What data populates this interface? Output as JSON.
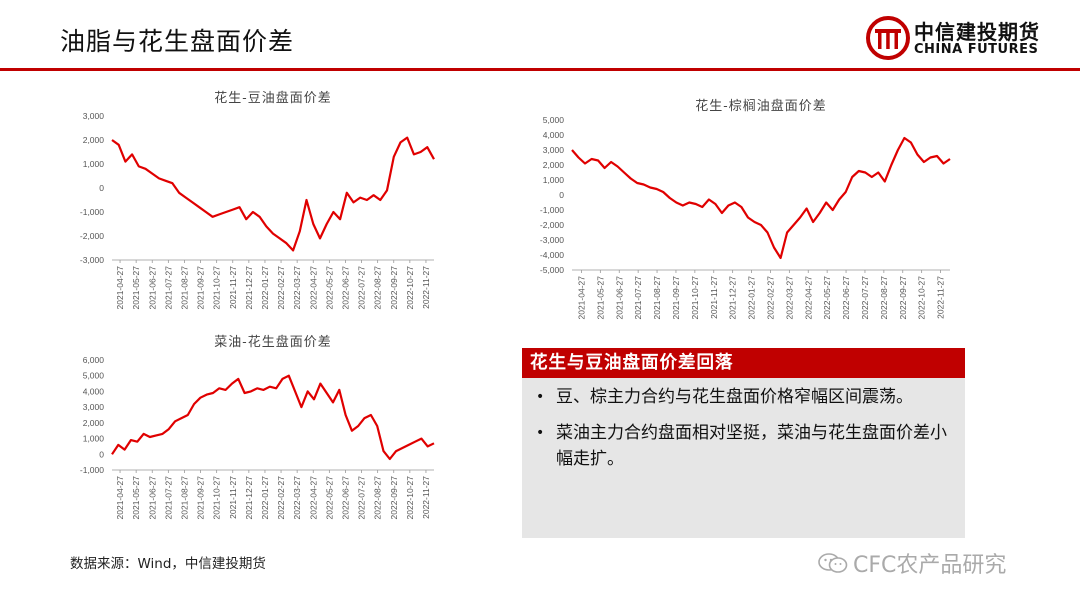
{
  "page": {
    "title": "油脂与花生盘面价差",
    "logo_cn": "中信建投期货",
    "logo_en": "CHINA FUTURES",
    "source": "数据来源：Wind，中信建投期货",
    "watermark": "CFC农产品研究",
    "panel": {
      "heading": "花生与豆油盘面价差回落",
      "bullets": [
        "豆、棕主力合约与花生盘面价格窄幅区间震荡。",
        "菜油主力合约盘面相对坚挺，菜油与花生盘面价差小幅走扩。"
      ]
    },
    "colors": {
      "accent": "#c00000",
      "line": "#e00000",
      "panel_bg": "#e6e6e6"
    },
    "icons": [
      "wechat-icon",
      "citic-logo-icon"
    ]
  },
  "chart_data": [
    {
      "id": "peanut-soyoil",
      "type": "line",
      "title": "花生-豆油盘面价差",
      "yticks": [
        -3000,
        -2000,
        -1000,
        0,
        1000,
        2000,
        3000
      ],
      "ytick_labels": [
        "-3,000",
        "-2,000",
        "-1,000",
        "0",
        "1,000",
        "2,000",
        "3,000"
      ],
      "ylim": [
        -3000,
        3000
      ],
      "xticks": [
        "2021-04-27",
        "2021-05-27",
        "2021-06-27",
        "2021-07-27",
        "2021-08-27",
        "2021-09-27",
        "2021-10-27",
        "2021-11-27",
        "2021-12-27",
        "2022-01-27",
        "2022-02-27",
        "2022-03-27",
        "2022-04-27",
        "2022-05-27",
        "2022-06-27",
        "2022-07-27",
        "2022-08-27",
        "2022-09-27",
        "2022-10-27",
        "2022-11-27"
      ],
      "series": [
        {
          "values": [
            2000,
            1800,
            1100,
            1400,
            900,
            800,
            600,
            400,
            300,
            200,
            -200,
            -400,
            -600,
            -800,
            -1000,
            -1200,
            -1100,
            -1000,
            -900,
            -800,
            -1300,
            -1000,
            -1200,
            -1600,
            -1900,
            -2100,
            -2300,
            -2600,
            -1800,
            -500,
            -1500,
            -2100,
            -1500,
            -1000,
            -1300,
            -200,
            -600,
            -400,
            -500,
            -300,
            -500,
            -100,
            1300,
            1900,
            2100,
            1400,
            1500,
            1700,
            1200
          ]
        }
      ]
    },
    {
      "id": "peanut-palmoil",
      "type": "line",
      "title": "花生-棕榈油盘面价差",
      "yticks": [
        -5000,
        -4000,
        -3000,
        -2000,
        -1000,
        0,
        1000,
        2000,
        3000,
        4000,
        5000
      ],
      "ytick_labels": [
        "-5,000",
        "-4,000",
        "-3,000",
        "-2,000",
        "-1,000",
        "0",
        "1,000",
        "2,000",
        "3,000",
        "4,000",
        "5,000"
      ],
      "ylim": [
        -5000,
        5000
      ],
      "xticks": [
        "2021-04-27",
        "2021-05-27",
        "2021-06-27",
        "2021-07-27",
        "2021-08-27",
        "2021-09-27",
        "2021-10-27",
        "2021-11-27",
        "2021-12-27",
        "2022-01-27",
        "2022-02-27",
        "2022-03-27",
        "2022-04-27",
        "2022-05-27",
        "2022-06-27",
        "2022-07-27",
        "2022-08-27",
        "2022-09-27",
        "2022-10-27",
        "2022-11-27"
      ],
      "series": [
        {
          "values": [
            3000,
            2500,
            2100,
            2400,
            2300,
            1800,
            2200,
            1900,
            1500,
            1100,
            800,
            700,
            500,
            400,
            200,
            -200,
            -500,
            -700,
            -500,
            -600,
            -800,
            -300,
            -600,
            -1200,
            -700,
            -500,
            -800,
            -1500,
            -1800,
            -2000,
            -2500,
            -3500,
            -4200,
            -2500,
            -2000,
            -1500,
            -900,
            -1800,
            -1200,
            -500,
            -1000,
            -300,
            200,
            1200,
            1600,
            1500,
            1200,
            1500,
            900,
            2000,
            3000,
            3800,
            3500,
            2700,
            2200,
            2500,
            2600,
            2100,
            2400
          ]
        }
      ]
    },
    {
      "id": "rapeseed-peanut",
      "type": "line",
      "title": "菜油-花生盘面价差",
      "yticks": [
        -1000,
        0,
        1000,
        2000,
        3000,
        4000,
        5000,
        6000
      ],
      "ytick_labels": [
        "-1,000",
        "0",
        "1,000",
        "2,000",
        "3,000",
        "4,000",
        "5,000",
        "6,000"
      ],
      "ylim": [
        -1000,
        6000
      ],
      "xticks": [
        "2021-04-27",
        "2021-05-27",
        "2021-06-27",
        "2021-07-27",
        "2021-08-27",
        "2021-09-27",
        "2021-10-27",
        "2021-11-27",
        "2021-12-27",
        "2022-01-27",
        "2022-02-27",
        "2022-03-27",
        "2022-04-27",
        "2022-05-27",
        "2022-06-27",
        "2022-07-27",
        "2022-08-27",
        "2022-09-27",
        "2022-10-27",
        "2022-11-27"
      ],
      "series": [
        {
          "values": [
            0,
            600,
            300,
            900,
            800,
            1300,
            1100,
            1200,
            1300,
            1600,
            2100,
            2300,
            2500,
            3200,
            3600,
            3800,
            3900,
            4200,
            4100,
            4500,
            4800,
            3900,
            4000,
            4200,
            4100,
            4300,
            4200,
            4800,
            5000,
            4000,
            3000,
            4000,
            3500,
            4500,
            3900,
            3300,
            4100,
            2500,
            1500,
            1800,
            2300,
            2500,
            1800,
            200,
            -300,
            200,
            400,
            600,
            800,
            1000,
            500,
            700
          ]
        }
      ]
    }
  ]
}
